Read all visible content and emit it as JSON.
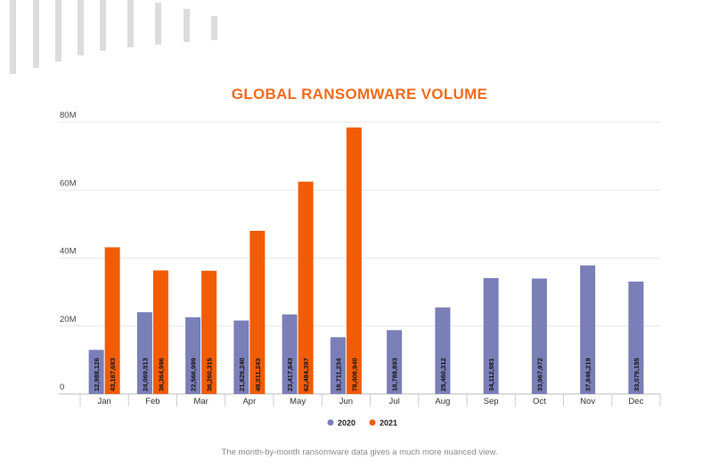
{
  "colors": {
    "series_2020": "#7b7fb8",
    "series_2021": "#f25c05",
    "title": "#f26b1d",
    "grid": "#e6e6e6",
    "decoration": "#dcdcdc"
  },
  "caption": "The month-by-month ransomware data gives a much more nuanced view.",
  "chart_data": {
    "type": "bar",
    "title": "GLOBAL RANSOMWARE VOLUME",
    "xlabel": "",
    "ylabel": "",
    "ylim": [
      0,
      80000000
    ],
    "yticks": [
      0,
      20000000,
      40000000,
      60000000,
      80000000
    ],
    "ytick_labels": [
      "0",
      "20M",
      "40M",
      "60M",
      "80M"
    ],
    "grid": true,
    "legend_position": "bottom-center",
    "categories": [
      "Jan",
      "Feb",
      "Mar",
      "Apr",
      "May",
      "Jun",
      "Jul",
      "Aug",
      "Sep",
      "Oct",
      "Nov",
      "Dec"
    ],
    "series": [
      {
        "name": "2020",
        "values": [
          12988126,
          24069513,
          22566999,
          21629240,
          23417843,
          16711234,
          18788893,
          25460312,
          34112981,
          33967972,
          37846219,
          33079155
        ],
        "labels": [
          "12,988,126",
          "24,069,513",
          "22,566,999",
          "21,629,240",
          "23,417,843",
          "16,711,234",
          "18,788,893",
          "25,460,312",
          "34,112,981",
          "33,967,972",
          "37,846,219",
          "33,079,155"
        ]
      },
      {
        "name": "2021",
        "values": [
          43167683,
          36364996,
          36260315,
          48011243,
          62484397,
          78406940,
          null,
          null,
          null,
          null,
          null,
          null
        ],
        "labels": [
          "43,167,683",
          "36,364,996",
          "36,260,315",
          "48,011,243",
          "62,484,397",
          "78,406,940",
          null,
          null,
          null,
          null,
          null,
          null
        ]
      }
    ]
  }
}
